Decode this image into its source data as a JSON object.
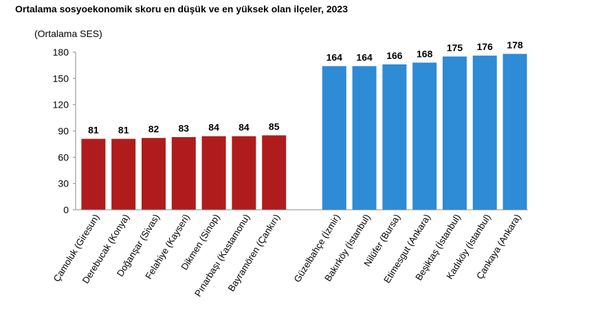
{
  "chart_data": {
    "type": "bar",
    "title": "Ortalama sosyoekonomik skoru en düşük ve en yüksek olan ilçeler, 2023",
    "ylabel": "(Ortalama SES)",
    "xlabel": "",
    "ylim": [
      0,
      180
    ],
    "yticks": [
      0,
      30,
      60,
      90,
      120,
      150,
      180
    ],
    "grid": false,
    "legend": "none",
    "groups": [
      {
        "name": "lowest",
        "color": "#b01c1c",
        "categories": [
          "Çamoluk (Giresun)",
          "Derebucak (Konya)",
          "Doğanşar (Sivas)",
          "Felahiye (Kayseri)",
          "Dikmen (Sinop)",
          "Pınarbaşı (Kastamonu)",
          "Bayramören (Çankırı)"
        ],
        "values": [
          81,
          81,
          82,
          83,
          84,
          84,
          85
        ]
      },
      {
        "name": "highest",
        "color": "#2e8bd6",
        "categories": [
          "Güzelbahçe (İzmir)",
          "Bakırköy (İstanbul)",
          "Nilüfer (Bursa)",
          "Etimesgut (Ankara)",
          "Beşiktaş (İstanbul)",
          "Kadıköy (İstanbul)",
          "Çankaya (Ankara)"
        ],
        "values": [
          164,
          164,
          166,
          168,
          175,
          176,
          178
        ]
      }
    ]
  }
}
